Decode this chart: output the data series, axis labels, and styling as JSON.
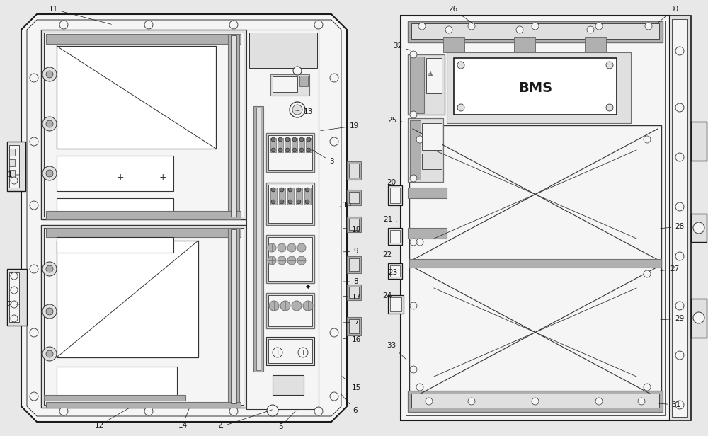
{
  "bg_color": "#e8e8e8",
  "white": "#ffffff",
  "very_light": "#f5f5f5",
  "light_gray": "#e0e0e0",
  "mid_gray": "#b0b0b0",
  "dark_gray": "#707070",
  "black": "#1a1a1a",
  "line_w": "#333333",
  "bms_text": "BMS"
}
